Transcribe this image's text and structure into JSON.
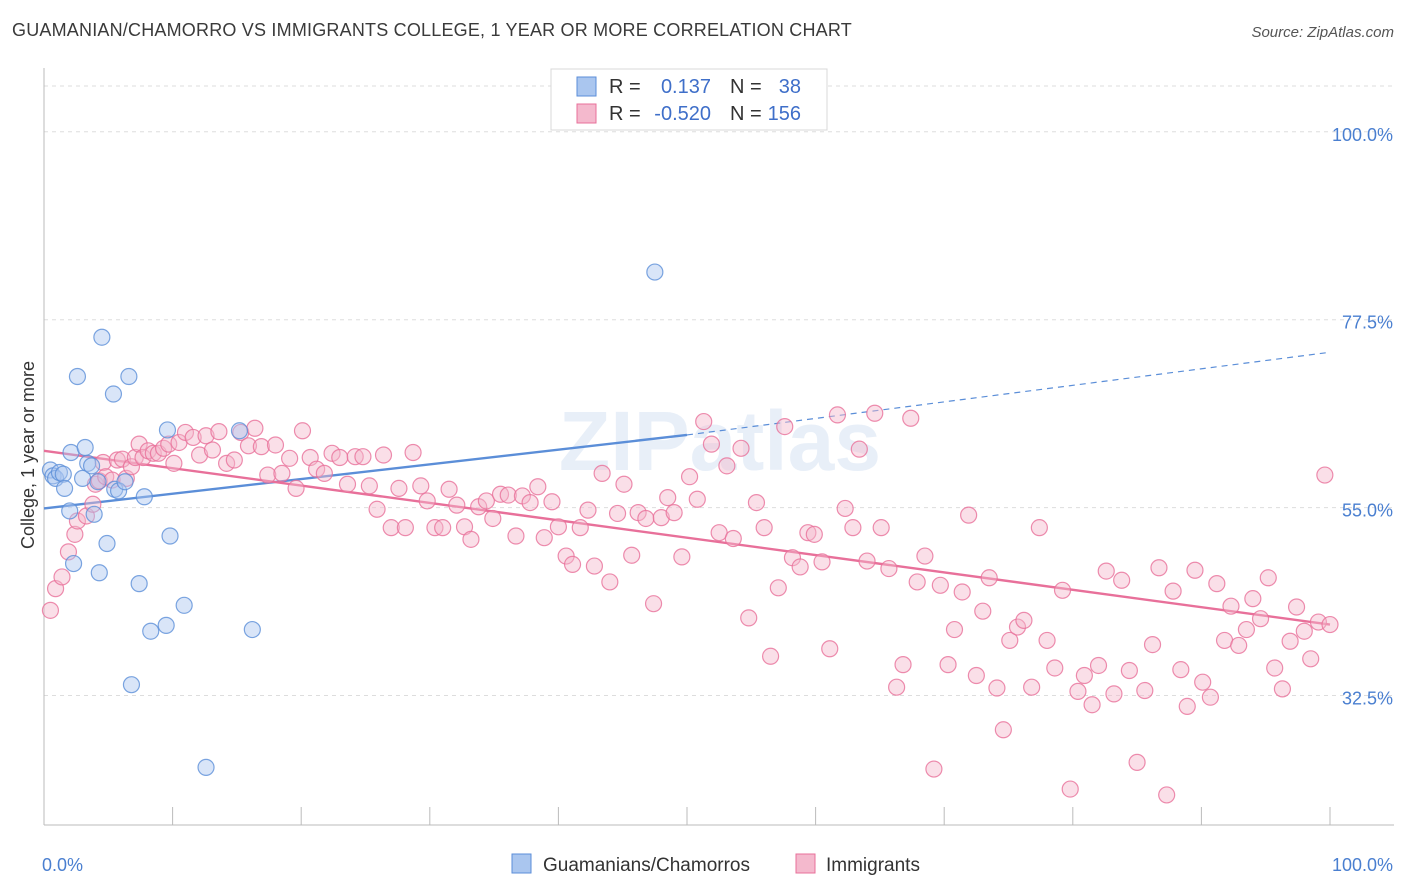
{
  "title": "GUAMANIAN/CHAMORRO VS IMMIGRANTS COLLEGE, 1 YEAR OR MORE CORRELATION CHART",
  "source": "Source: ZipAtlas.com",
  "watermark": "ZIPatlas",
  "colors": {
    "blue": "#5b8ed8",
    "blue_fill": "#aac6ef",
    "pink": "#e8709a",
    "pink_fill": "#f4b9cd",
    "tick_text": "#4a7fd0",
    "grid": "#dddddd"
  },
  "legend": {
    "rows": [
      {
        "r_label": "R =",
        "r_value": "0.137",
        "n_label": "N =",
        "n_value": "38"
      },
      {
        "r_label": "R =",
        "r_value": "-0.520",
        "n_label": "N =",
        "n_value": "156"
      }
    ]
  },
  "chart_data": {
    "type": "scatter",
    "title": "GUAMANIAN/CHAMORRO VS IMMIGRANTS COLLEGE, 1 YEAR OR MORE CORRELATION CHART",
    "xlabel": "",
    "ylabel": "College, 1 year or more",
    "xlim": [
      0,
      100
    ],
    "ylim": [
      17,
      105
    ],
    "x_tick_labels": [
      "0.0%",
      "100.0%"
    ],
    "y_ticks": [
      32.5,
      55.0,
      77.5,
      100.0
    ],
    "y_tick_labels": [
      "32.5%",
      "55.0%",
      "77.5%",
      "100.0%"
    ],
    "grid": true,
    "legend_position": "top-center",
    "series": [
      {
        "name": "Guamanians/Chamorros",
        "color": "#5b8ed8",
        "R": 0.137,
        "N": 38,
        "trend": {
          "x": [
            0,
            50
          ],
          "y": [
            54.9,
            63.7
          ],
          "dashed_to": [
            100,
            73.6
          ]
        },
        "points": [
          [
            0.5,
            59.5
          ],
          [
            0.7,
            58.8
          ],
          [
            0.9,
            58.5
          ],
          [
            1.2,
            59.2
          ],
          [
            1.5,
            59.0
          ],
          [
            1.6,
            57.3
          ],
          [
            2.0,
            54.6
          ],
          [
            2.1,
            61.6
          ],
          [
            2.3,
            48.3
          ],
          [
            2.6,
            70.7
          ],
          [
            3.0,
            58.5
          ],
          [
            3.2,
            62.2
          ],
          [
            3.4,
            60.3
          ],
          [
            3.7,
            60.0
          ],
          [
            3.9,
            54.2
          ],
          [
            4.2,
            58.1
          ],
          [
            4.3,
            47.2
          ],
          [
            4.5,
            75.4
          ],
          [
            4.9,
            50.7
          ],
          [
            5.4,
            68.6
          ],
          [
            5.5,
            57.2
          ],
          [
            5.8,
            57.0
          ],
          [
            6.3,
            58.1
          ],
          [
            6.6,
            70.7
          ],
          [
            6.8,
            33.8
          ],
          [
            7.4,
            45.9
          ],
          [
            7.8,
            56.3
          ],
          [
            8.3,
            40.2
          ],
          [
            9.5,
            40.9
          ],
          [
            9.6,
            64.3
          ],
          [
            9.8,
            51.6
          ],
          [
            10.9,
            43.3
          ],
          [
            12.6,
            23.9
          ],
          [
            15.2,
            64.2
          ],
          [
            16.2,
            40.4
          ],
          [
            47.5,
            83.2
          ]
        ]
      },
      {
        "name": "Immigrants",
        "color": "#e8709a",
        "R": -0.52,
        "N": 156,
        "trend": {
          "x": [
            0,
            100
          ],
          "y": [
            61.8,
            41.0
          ]
        },
        "points": [
          [
            0.5,
            42.7
          ],
          [
            0.9,
            45.3
          ],
          [
            1.4,
            46.7
          ],
          [
            1.9,
            49.7
          ],
          [
            2.4,
            51.8
          ],
          [
            2.6,
            53.4
          ],
          [
            3.3,
            54.0
          ],
          [
            3.8,
            55.4
          ],
          [
            4.0,
            57.8
          ],
          [
            4.3,
            58.2
          ],
          [
            4.6,
            60.4
          ],
          [
            4.8,
            58.7
          ],
          [
            5.3,
            58.3
          ],
          [
            5.7,
            60.7
          ],
          [
            6.1,
            60.8
          ],
          [
            6.4,
            58.5
          ],
          [
            6.8,
            59.9
          ],
          [
            7.1,
            61.0
          ],
          [
            7.4,
            62.6
          ],
          [
            7.7,
            61.0
          ],
          [
            8.1,
            61.8
          ],
          [
            8.5,
            61.5
          ],
          [
            8.9,
            61.5
          ],
          [
            9.3,
            62.1
          ],
          [
            9.7,
            62.6
          ],
          [
            10.1,
            60.3
          ],
          [
            10.5,
            62.8
          ],
          [
            11.0,
            64.0
          ],
          [
            11.6,
            63.4
          ],
          [
            12.1,
            61.3
          ],
          [
            12.6,
            63.6
          ],
          [
            13.1,
            61.9
          ],
          [
            13.6,
            64.1
          ],
          [
            14.2,
            60.3
          ],
          [
            14.8,
            60.7
          ],
          [
            15.3,
            64.0
          ],
          [
            15.9,
            62.4
          ],
          [
            16.4,
            64.5
          ],
          [
            16.9,
            62.3
          ],
          [
            17.4,
            58.9
          ],
          [
            18.0,
            62.5
          ],
          [
            18.5,
            59.1
          ],
          [
            19.1,
            60.9
          ],
          [
            19.6,
            57.3
          ],
          [
            20.1,
            64.2
          ],
          [
            20.7,
            61.0
          ],
          [
            21.2,
            59.6
          ],
          [
            21.8,
            59.1
          ],
          [
            22.4,
            61.5
          ],
          [
            23.0,
            61.0
          ],
          [
            23.6,
            57.8
          ],
          [
            24.2,
            61.1
          ],
          [
            24.8,
            61.1
          ],
          [
            25.3,
            57.6
          ],
          [
            25.9,
            54.8
          ],
          [
            26.4,
            61.3
          ],
          [
            27.0,
            52.6
          ],
          [
            27.6,
            57.3
          ],
          [
            28.1,
            52.6
          ],
          [
            28.7,
            61.6
          ],
          [
            29.3,
            57.6
          ],
          [
            29.8,
            55.8
          ],
          [
            30.4,
            52.6
          ],
          [
            31.0,
            52.6
          ],
          [
            31.5,
            57.2
          ],
          [
            32.1,
            55.3
          ],
          [
            32.7,
            52.7
          ],
          [
            33.2,
            51.2
          ],
          [
            33.8,
            55.1
          ],
          [
            34.4,
            55.8
          ],
          [
            34.9,
            53.7
          ],
          [
            35.5,
            56.6
          ],
          [
            36.1,
            56.5
          ],
          [
            36.7,
            51.6
          ],
          [
            37.2,
            56.4
          ],
          [
            37.8,
            55.6
          ],
          [
            38.4,
            57.5
          ],
          [
            38.9,
            51.4
          ],
          [
            39.5,
            55.7
          ],
          [
            40.0,
            52.7
          ],
          [
            40.6,
            49.2
          ],
          [
            41.1,
            48.2
          ],
          [
            41.7,
            52.6
          ],
          [
            42.3,
            54.7
          ],
          [
            42.8,
            48.0
          ],
          [
            43.4,
            59.1
          ],
          [
            44.0,
            46.1
          ],
          [
            44.6,
            54.3
          ],
          [
            45.1,
            57.8
          ],
          [
            45.7,
            49.3
          ],
          [
            46.2,
            54.4
          ],
          [
            46.8,
            53.7
          ],
          [
            47.4,
            43.5
          ],
          [
            48.0,
            53.8
          ],
          [
            48.5,
            56.2
          ],
          [
            49.0,
            54.4
          ],
          [
            49.6,
            49.1
          ],
          [
            50.2,
            58.7
          ],
          [
            50.8,
            56.0
          ],
          [
            51.3,
            65.3
          ],
          [
            51.9,
            62.6
          ],
          [
            52.5,
            52.0
          ],
          [
            53.1,
            60.0
          ],
          [
            53.6,
            51.3
          ],
          [
            54.2,
            62.1
          ],
          [
            54.8,
            41.8
          ],
          [
            55.4,
            55.6
          ],
          [
            56.0,
            52.6
          ],
          [
            56.5,
            37.2
          ],
          [
            57.1,
            45.4
          ],
          [
            57.6,
            64.7
          ],
          [
            58.2,
            49.0
          ],
          [
            58.8,
            47.9
          ],
          [
            59.4,
            52.0
          ],
          [
            59.9,
            51.8
          ],
          [
            60.5,
            48.5
          ],
          [
            61.1,
            38.1
          ],
          [
            61.7,
            66.1
          ],
          [
            62.3,
            54.9
          ],
          [
            62.9,
            52.6
          ],
          [
            63.4,
            62.0
          ],
          [
            64.0,
            48.6
          ],
          [
            64.6,
            66.3
          ],
          [
            65.1,
            52.6
          ],
          [
            65.7,
            47.7
          ],
          [
            66.3,
            33.5
          ],
          [
            66.8,
            36.2
          ],
          [
            67.4,
            65.7
          ],
          [
            67.9,
            46.1
          ],
          [
            68.5,
            49.2
          ],
          [
            69.2,
            23.7
          ],
          [
            69.7,
            45.7
          ],
          [
            70.3,
            36.2
          ],
          [
            70.8,
            40.4
          ],
          [
            71.4,
            44.9
          ],
          [
            71.9,
            54.1
          ],
          [
            72.5,
            34.9
          ],
          [
            73.0,
            42.6
          ],
          [
            73.5,
            46.6
          ],
          [
            74.1,
            33.4
          ],
          [
            74.6,
            28.4
          ],
          [
            75.1,
            39.1
          ],
          [
            75.7,
            40.7
          ],
          [
            76.2,
            41.5
          ],
          [
            76.8,
            33.5
          ],
          [
            77.4,
            52.6
          ],
          [
            78.0,
            39.1
          ],
          [
            78.6,
            35.8
          ],
          [
            79.2,
            45.1
          ],
          [
            79.8,
            21.3
          ],
          [
            80.4,
            33.0
          ],
          [
            80.9,
            34.9
          ],
          [
            81.5,
            31.4
          ],
          [
            82.0,
            36.1
          ],
          [
            82.6,
            47.4
          ],
          [
            83.2,
            32.7
          ],
          [
            83.8,
            46.3
          ],
          [
            84.4,
            35.5
          ],
          [
            85.0,
            24.5
          ],
          [
            85.6,
            33.1
          ],
          [
            86.2,
            38.6
          ],
          [
            86.7,
            47.8
          ],
          [
            87.3,
            20.6
          ],
          [
            87.8,
            45.0
          ],
          [
            88.4,
            35.6
          ],
          [
            88.9,
            31.2
          ],
          [
            89.5,
            47.5
          ],
          [
            90.1,
            34.1
          ],
          [
            90.7,
            32.3
          ],
          [
            91.2,
            45.9
          ],
          [
            91.8,
            39.1
          ],
          [
            92.3,
            43.2
          ],
          [
            92.9,
            38.5
          ],
          [
            93.5,
            40.4
          ],
          [
            94.0,
            44.1
          ],
          [
            94.6,
            41.7
          ],
          [
            95.2,
            46.6
          ],
          [
            95.7,
            35.8
          ],
          [
            96.3,
            33.3
          ],
          [
            96.9,
            39.0
          ],
          [
            97.4,
            43.1
          ],
          [
            98.0,
            40.2
          ],
          [
            98.5,
            36.9
          ],
          [
            99.1,
            41.3
          ],
          [
            99.6,
            58.9
          ],
          [
            100,
            41.0
          ]
        ]
      }
    ]
  },
  "bottom_legend": {
    "items": [
      {
        "label": "Guamanians/Chamorros"
      },
      {
        "label": "Immigrants"
      }
    ]
  }
}
